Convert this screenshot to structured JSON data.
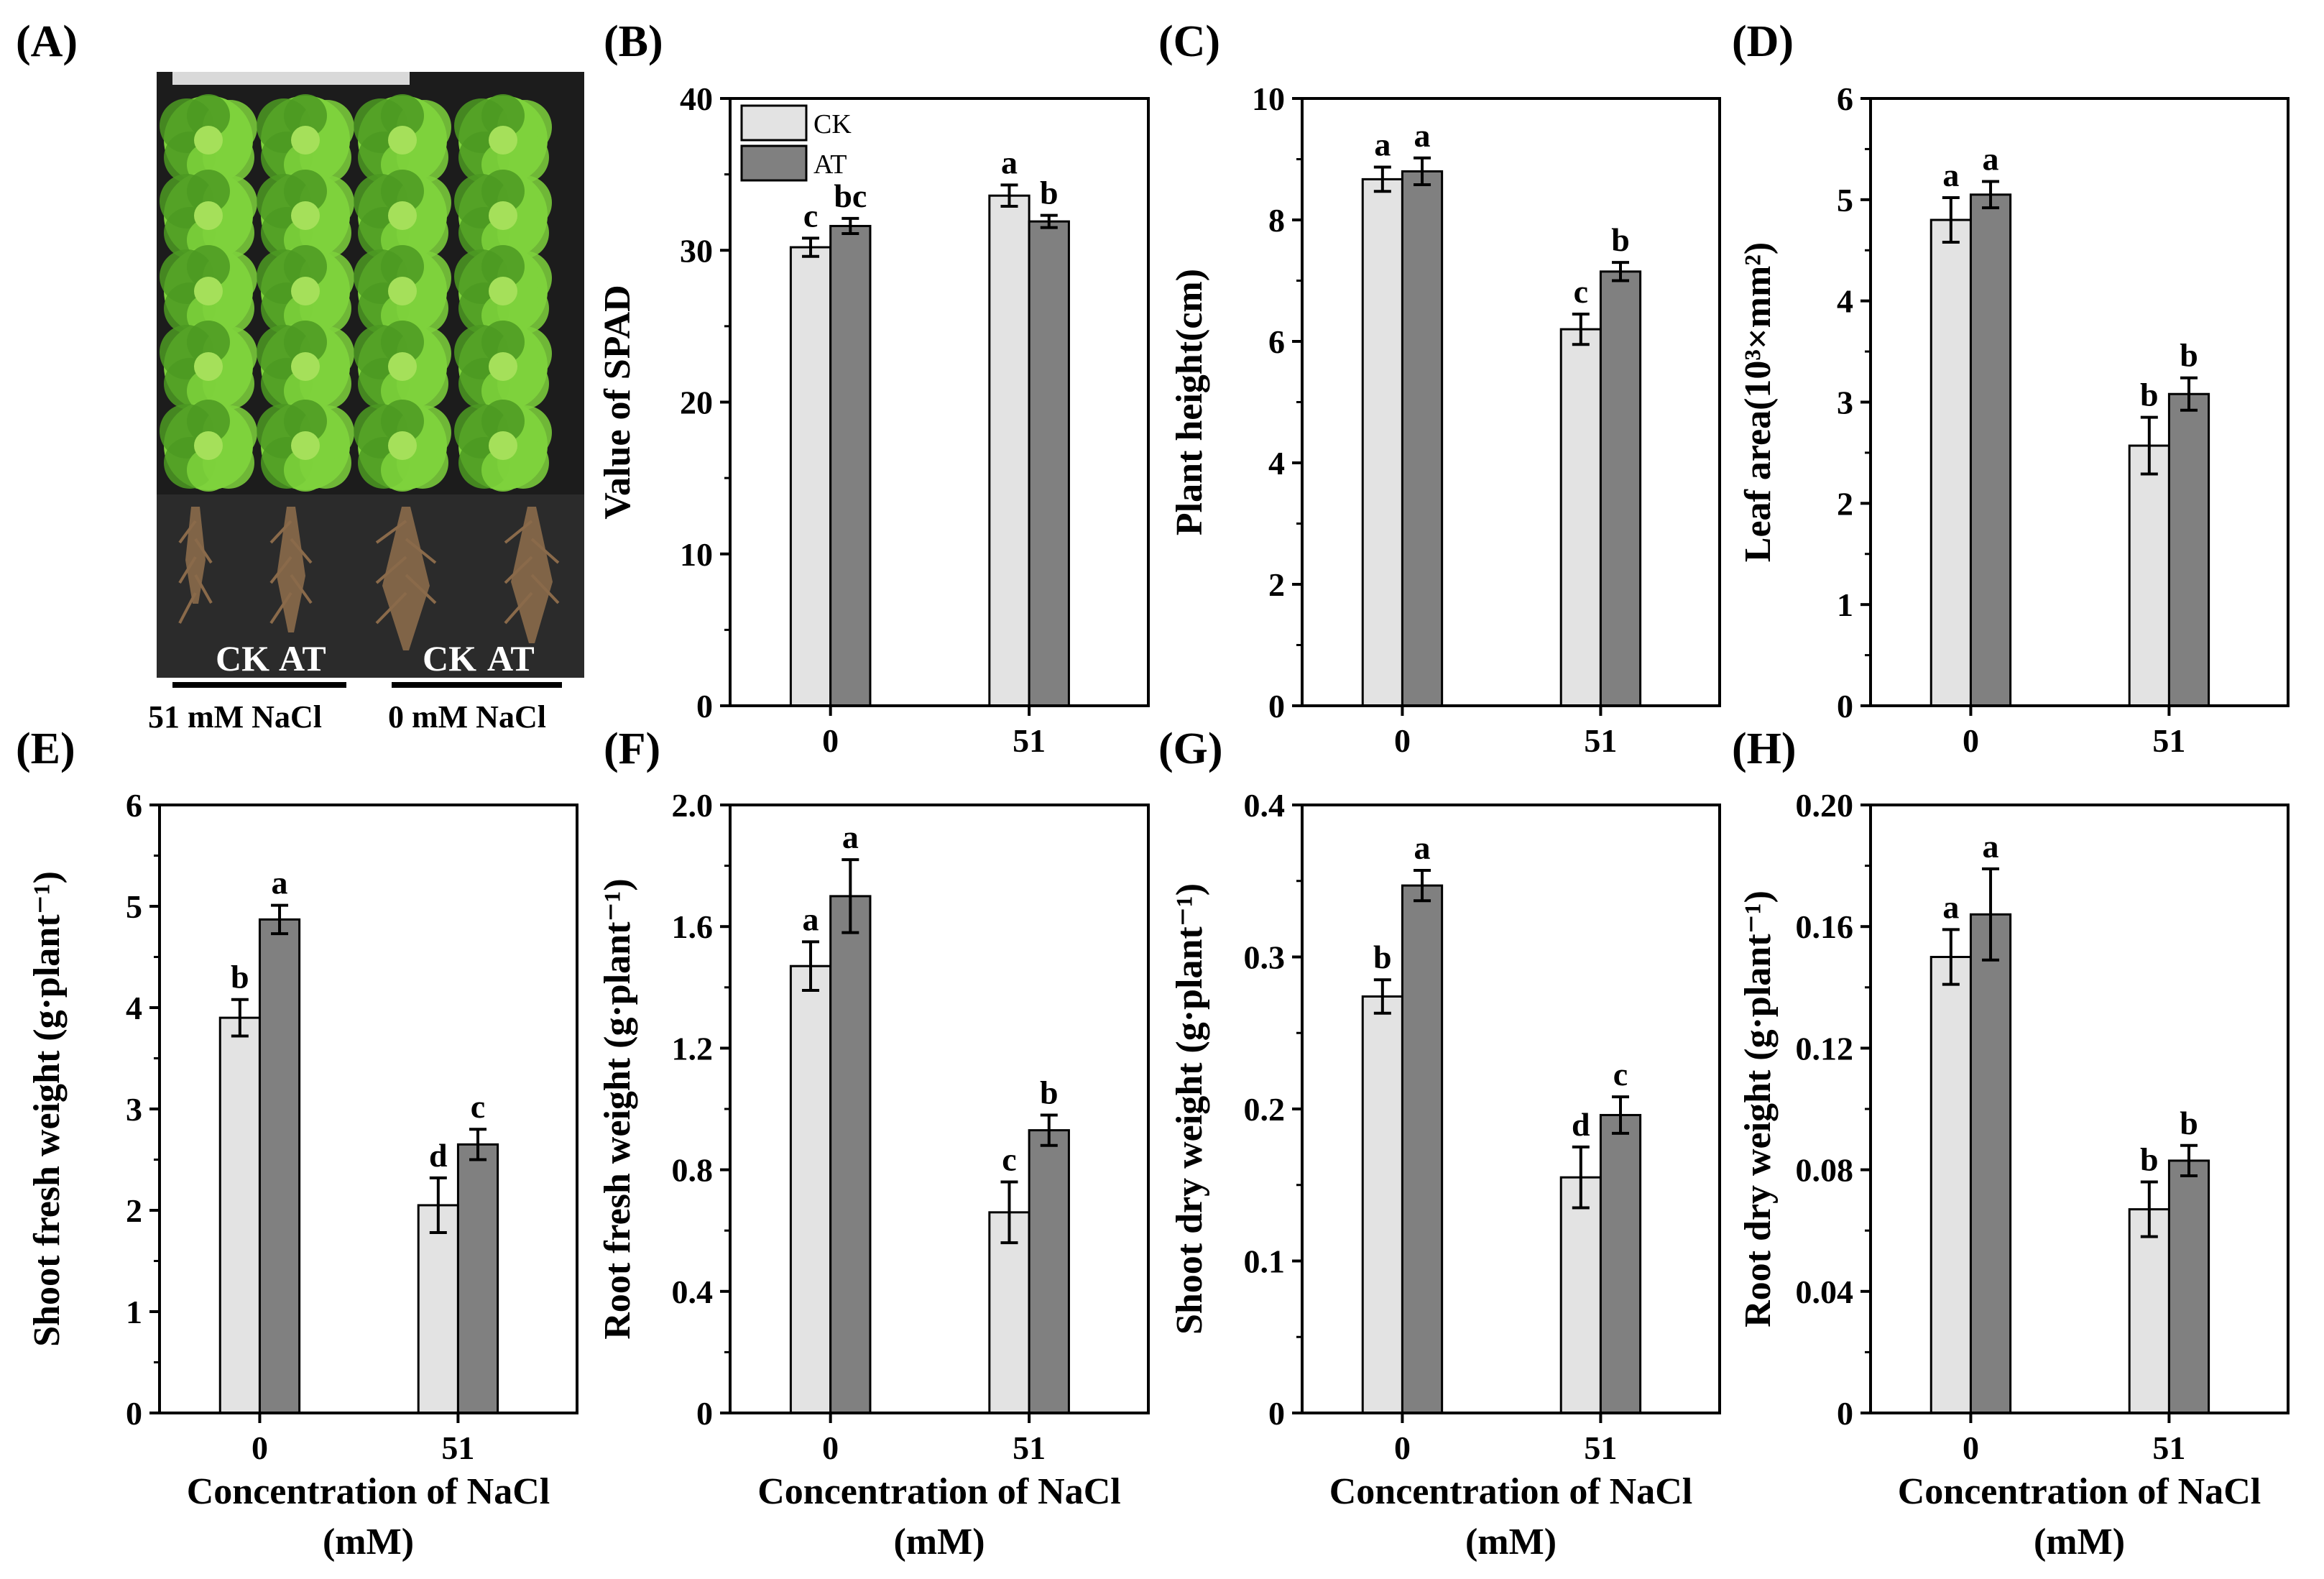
{
  "figure": {
    "panel_a": {
      "label": "(A)",
      "root_labels": [
        "CK",
        "AT",
        "CK",
        "AT"
      ],
      "conditions": [
        "51 mM NaCl",
        "0 mM NaCl"
      ],
      "colors": {
        "shoot_background": "#1c1c1c",
        "leaf": "#7ed23c",
        "leaf_dark": "#4c9a22",
        "root_background": "#2b2b2b",
        "root": "#8a6a4a"
      }
    },
    "legend": {
      "ck": "CK",
      "at": "AT"
    },
    "colors": {
      "ck": "#e3e3e3",
      "at": "#808080",
      "axis": "#000000"
    }
  },
  "chart_data": [
    {
      "id": "B",
      "label": "(B)",
      "type": "bar",
      "categories": [
        "0",
        "51"
      ],
      "series": [
        {
          "name": "CK",
          "values": [
            30.2,
            33.6
          ],
          "errors": [
            0.6,
            0.7
          ],
          "letters": [
            "c",
            "a"
          ]
        },
        {
          "name": "AT",
          "values": [
            31.6,
            31.9
          ],
          "errors": [
            0.5,
            0.4
          ],
          "letters": [
            "bc",
            "b"
          ]
        }
      ],
      "ylabel": "Value of SPAD",
      "xlabel": "",
      "ylim": [
        0,
        40
      ],
      "yticks": [
        "0",
        "10",
        "20",
        "30",
        "40"
      ],
      "legend": true
    },
    {
      "id": "C",
      "label": "(C)",
      "type": "bar",
      "categories": [
        "0",
        "51"
      ],
      "series": [
        {
          "name": "CK",
          "values": [
            8.67,
            6.2
          ],
          "errors": [
            0.2,
            0.25
          ],
          "letters": [
            "a",
            "c"
          ]
        },
        {
          "name": "AT",
          "values": [
            8.8,
            7.15
          ],
          "errors": [
            0.22,
            0.15
          ],
          "letters": [
            "a",
            "b"
          ]
        }
      ],
      "ylabel": "Plant height(cm)",
      "xlabel": "",
      "ylim": [
        0,
        10
      ],
      "yticks": [
        "0",
        "2",
        "4",
        "6",
        "8",
        "10"
      ]
    },
    {
      "id": "D",
      "label": "(D)",
      "type": "bar",
      "categories": [
        "0",
        "51"
      ],
      "series": [
        {
          "name": "CK",
          "values": [
            4.8,
            2.57
          ],
          "errors": [
            0.22,
            0.28
          ],
          "letters": [
            "a",
            "b"
          ]
        },
        {
          "name": "AT",
          "values": [
            5.05,
            3.08
          ],
          "errors": [
            0.13,
            0.16
          ],
          "letters": [
            "a",
            "b"
          ]
        }
      ],
      "ylabel": "Leaf area(10³×mm²)",
      "xlabel": "",
      "ylim": [
        0,
        6
      ],
      "yticks": [
        "0",
        "1",
        "2",
        "3",
        "4",
        "5",
        "6"
      ]
    },
    {
      "id": "E",
      "label": "(E)",
      "type": "bar",
      "categories": [
        "0",
        "51"
      ],
      "series": [
        {
          "name": "CK",
          "values": [
            3.9,
            2.05
          ],
          "errors": [
            0.18,
            0.27
          ],
          "letters": [
            "b",
            "d"
          ]
        },
        {
          "name": "AT",
          "values": [
            4.87,
            2.65
          ],
          "errors": [
            0.14,
            0.15
          ],
          "letters": [
            "a",
            "c"
          ]
        }
      ],
      "ylabel": "Shoot fresh weight (g·plant⁻¹)",
      "xlabel": "Concentration of NaCl",
      "xlabel2": "(mM)",
      "ylim": [
        0,
        6
      ],
      "yticks": [
        "0",
        "1",
        "2",
        "3",
        "4",
        "5",
        "6"
      ]
    },
    {
      "id": "F",
      "label": "(F)",
      "type": "bar",
      "categories": [
        "0",
        "51"
      ],
      "series": [
        {
          "name": "CK",
          "values": [
            1.47,
            0.66
          ],
          "errors": [
            0.08,
            0.1
          ],
          "letters": [
            "a",
            "c"
          ]
        },
        {
          "name": "AT",
          "values": [
            1.7,
            0.93
          ],
          "errors": [
            0.12,
            0.05
          ],
          "letters": [
            "a",
            "b"
          ]
        }
      ],
      "ylabel": "Root fresh weight (g·plant⁻¹)",
      "xlabel": "Concentration of NaCl",
      "xlabel2": "(mM)",
      "ylim": [
        0,
        2.0
      ],
      "yticks": [
        "0",
        "0.4",
        "0.8",
        "1.2",
        "1.6",
        "2.0"
      ]
    },
    {
      "id": "G",
      "label": "(G)",
      "type": "bar",
      "categories": [
        "0",
        "51"
      ],
      "series": [
        {
          "name": "CK",
          "values": [
            0.274,
            0.155
          ],
          "errors": [
            0.011,
            0.02
          ],
          "letters": [
            "b",
            "d"
          ]
        },
        {
          "name": "AT",
          "values": [
            0.347,
            0.196
          ],
          "errors": [
            0.01,
            0.012
          ],
          "letters": [
            "a",
            "c"
          ]
        }
      ],
      "ylabel": "Shoot dry weight (g·plant⁻¹)",
      "xlabel": "Concentration of NaCl",
      "xlabel2": "(mM)",
      "ylim": [
        0,
        0.4
      ],
      "yticks": [
        "0",
        "0.1",
        "0.2",
        "0.3",
        "0.4"
      ]
    },
    {
      "id": "H",
      "label": "(H)",
      "type": "bar",
      "categories": [
        "0",
        "51"
      ],
      "series": [
        {
          "name": "CK",
          "values": [
            0.15,
            0.067
          ],
          "errors": [
            0.009,
            0.009
          ],
          "letters": [
            "a",
            "b"
          ]
        },
        {
          "name": "AT",
          "values": [
            0.164,
            0.083
          ],
          "errors": [
            0.015,
            0.005
          ],
          "letters": [
            "a",
            "b"
          ]
        }
      ],
      "ylabel": "Root dry weight (g·plant⁻¹)",
      "xlabel": "Concentration of NaCl",
      "xlabel2": "(mM)",
      "ylim": [
        0,
        0.2
      ],
      "yticks": [
        "0",
        "0.04",
        "0.08",
        "0.12",
        "0.16",
        "0.20"
      ]
    }
  ]
}
